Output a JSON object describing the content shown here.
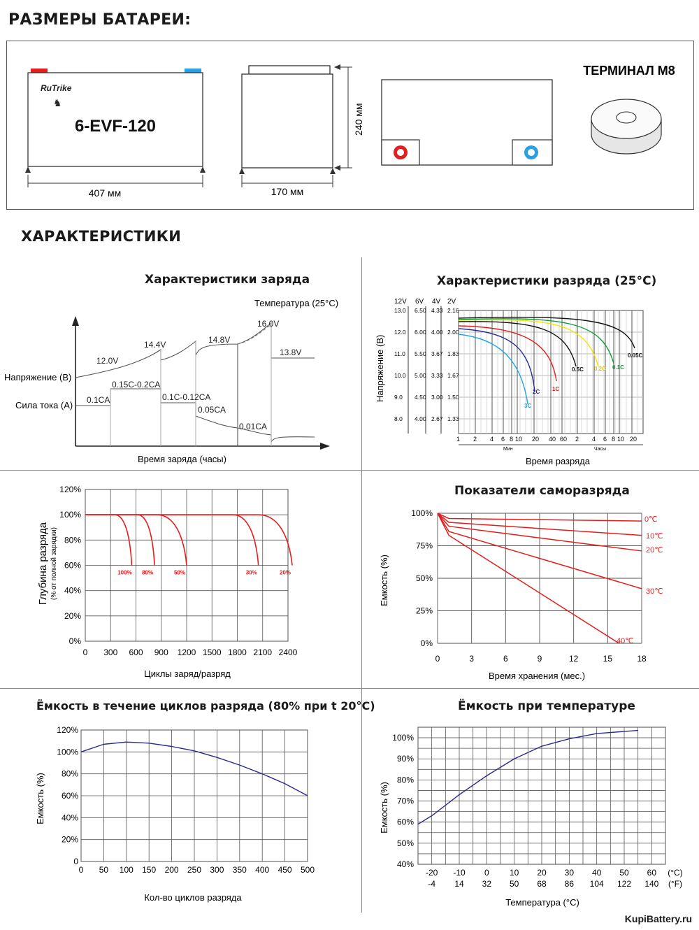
{
  "titles": {
    "dimensions": "РАЗМЕРЫ БАТАРЕИ:",
    "characteristics": "ХАРАКТЕРИСТИКИ"
  },
  "battery": {
    "logo": "RuTrike",
    "model": "6-EVF-120",
    "len": "407 мм",
    "width": "170 мм",
    "height": "240 мм",
    "terminal": "ТЕРМИНАЛ M8"
  },
  "charge": {
    "title": "Характеристики заряда",
    "temp": "Температура (25°C)",
    "y1": "Напряжение (В)",
    "y2": "Сила тока (А)",
    "xlabel": "Время заряда (часы)",
    "v_labels": [
      "12.0V",
      "14.4V",
      "14.8V",
      "16.0V",
      "13.8V"
    ],
    "i_labels": [
      "0.1CA",
      "0.15C-0.2CA",
      "0.1C-0.12CA",
      "0.05CA",
      "0.01CA"
    ]
  },
  "discharge": {
    "title": "Характеристики разряда (25°C)",
    "ylabel": "Напряжение (В)",
    "xlabel": "Время разряда",
    "cols": [
      "12V",
      "6V",
      "4V",
      "2V"
    ],
    "rows": [
      [
        "13.0",
        "6.50",
        "4.33",
        "2.16"
      ],
      [
        "12.0",
        "6.00",
        "4.00",
        "2.00"
      ],
      [
        "11.0",
        "5.50",
        "3.67",
        "1.83"
      ],
      [
        "10.0",
        "5.00",
        "3.33",
        "1.67"
      ],
      [
        "9.0",
        "4.50",
        "3.00",
        "1.50"
      ],
      [
        "8.0",
        "4.00",
        "2.67",
        "1.33"
      ]
    ],
    "xticks": [
      "1",
      "2",
      "4",
      "6",
      "8",
      "10",
      "20",
      "40",
      "60",
      "2",
      "4",
      "6",
      "8",
      "10",
      "20"
    ],
    "units": [
      "Мин",
      "Часы"
    ],
    "series": [
      "3C",
      "2C",
      "1C",
      "0.5C",
      "0.2C",
      "0.1C",
      "0.05C"
    ],
    "colors": [
      "#1ea7e1",
      "#2b2b8f",
      "#e41d1d",
      "#111111",
      "#f2e600",
      "#0f9d3a",
      "#111111"
    ]
  },
  "cycles": {
    "ylabel": "Глубина разряда",
    "ylabel2": "(% от полной зарядки)",
    "xlabel": "Циклы заряд/разряд",
    "yticks": [
      "120%",
      "100%",
      "80%",
      "60%",
      "40%",
      "20%",
      "0%"
    ],
    "xticks": [
      "0",
      "300",
      "600",
      "900",
      "1200",
      "1500",
      "1800",
      "2100",
      "2400"
    ],
    "series": [
      "100%",
      "80%",
      "50%",
      "30%",
      "20%"
    ],
    "end_cycles": [
      550,
      820,
      1200,
      2050,
      2450
    ]
  },
  "self": {
    "title": "Показатели саморазряда",
    "ylabel": "Емкость (%)",
    "xlabel": "Время хранения (мес.)",
    "yticks": [
      "100%",
      "75%",
      "50%",
      "25%",
      "0%"
    ],
    "xticks": [
      "0",
      "3",
      "6",
      "9",
      "12",
      "15",
      "18"
    ],
    "series": [
      "0℃",
      "10℃",
      "20℃",
      "30℃",
      "40℃"
    ]
  },
  "cap_cycles": {
    "title": "Ёмкость в течение циклов разряда (80% при t 20°C)",
    "ylabel": "Емкость (%)",
    "xlabel": "Кол-во циклов разряда",
    "yticks": [
      "120%",
      "100%",
      "80%",
      "60%",
      "40%",
      "20%",
      "0"
    ],
    "xticks": [
      "0",
      "50",
      "100",
      "150",
      "200",
      "250",
      "300",
      "350",
      "400",
      "450",
      "500"
    ]
  },
  "cap_temp": {
    "title": "Ёмкость при температуре",
    "ylabel": "Емкость (%)",
    "xlabel": "Температура (°C)",
    "yticks": [
      "100%",
      "90%",
      "80%",
      "70%",
      "60%",
      "50%",
      "40%"
    ],
    "xticks_c": [
      "-20",
      "-10",
      "0",
      "10",
      "20",
      "30",
      "40",
      "50",
      "60",
      "(°C)"
    ],
    "xticks_f": [
      "-4",
      "14",
      "32",
      "50",
      "68",
      "86",
      "104",
      "122",
      "140",
      "(°F)"
    ]
  },
  "chart_data": [
    {
      "type": "line",
      "title": "Характеристики заряда",
      "xlabel": "Время заряда (часы)",
      "ylabel": "Напряжение (В) / Сила тока (А)",
      "series": [
        {
          "name": "Напряжение",
          "labels": [
            "12.0V",
            "14.4V",
            "14.8V",
            "16.0V",
            "13.8V"
          ]
        },
        {
          "name": "Сила тока",
          "labels": [
            "0.1CA",
            "0.15C-0.2CA",
            "0.1C-0.12CA",
            "0.05CA",
            "0.01CA"
          ]
        }
      ]
    },
    {
      "type": "line",
      "title": "Характеристики разряда (25°C)",
      "xlabel": "Время разряда",
      "ylabel": "Напряжение (В)",
      "series": [
        {
          "name": "3C"
        },
        {
          "name": "2C"
        },
        {
          "name": "1C"
        },
        {
          "name": "0.5C"
        },
        {
          "name": "0.2C"
        },
        {
          "name": "0.1C"
        },
        {
          "name": "0.05C"
        }
      ]
    },
    {
      "type": "line",
      "title": "",
      "xlabel": "Циклы заряд/разряд",
      "ylabel": "Глубина разряда",
      "ylim": [
        0,
        120
      ],
      "series": [
        {
          "name": "100%",
          "end_x": 550
        },
        {
          "name": "80%",
          "end_x": 820
        },
        {
          "name": "50%",
          "end_x": 1200
        },
        {
          "name": "30%",
          "end_x": 2050
        },
        {
          "name": "20%",
          "end_x": 2450
        }
      ]
    },
    {
      "type": "line",
      "title": "Показатели саморазряда",
      "xlabel": "Время хранения (мес.)",
      "ylabel": "Емкость (%)",
      "ylim": [
        0,
        100
      ],
      "xlim": [
        0,
        18
      ],
      "series": [
        {
          "name": "0℃",
          "x": [
            0,
            1,
            18
          ],
          "y": [
            100,
            96,
            94
          ]
        },
        {
          "name": "10℃",
          "x": [
            0,
            1,
            18
          ],
          "y": [
            100,
            93,
            83
          ]
        },
        {
          "name": "20℃",
          "x": [
            0,
            1,
            18
          ],
          "y": [
            100,
            90,
            71
          ]
        },
        {
          "name": "30℃",
          "x": [
            0,
            1,
            18
          ],
          "y": [
            100,
            86,
            42
          ]
        },
        {
          "name": "40℃",
          "x": [
            0,
            1,
            16
          ],
          "y": [
            100,
            83,
            0
          ]
        }
      ]
    },
    {
      "type": "line",
      "title": "Ёмкость в течение циклов разряда (80% при t 20°C)",
      "xlabel": "Кол-во циклов разряда",
      "ylabel": "Емкость (%)",
      "ylim": [
        0,
        120
      ],
      "xlim": [
        0,
        500
      ],
      "x": [
        0,
        50,
        100,
        150,
        200,
        250,
        300,
        350,
        400,
        450,
        500
      ],
      "values": [
        100,
        107,
        109,
        108,
        105,
        101,
        95,
        88,
        80,
        71,
        60
      ]
    },
    {
      "type": "line",
      "title": "Ёмкость при температуре",
      "xlabel": "Температура (°C)",
      "ylabel": "Емкость (%)",
      "ylim": [
        40,
        105
      ],
      "xlim": [
        -25,
        65
      ],
      "x": [
        -25,
        -20,
        -10,
        0,
        10,
        20,
        30,
        40,
        50,
        55
      ],
      "values": [
        59,
        63,
        73,
        82,
        90,
        96,
        99.5,
        102,
        103,
        103.5
      ]
    }
  ],
  "brand": "KupiBattery.ru"
}
